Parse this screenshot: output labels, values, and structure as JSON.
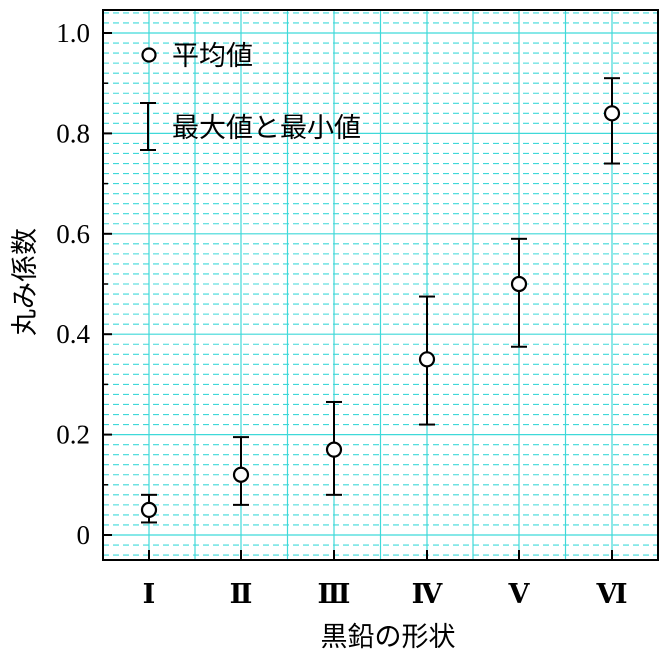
{
  "chart_data": {
    "type": "scatter",
    "xlabel": "黒鉛の形状",
    "ylabel": "丸み係数",
    "categories": [
      "Ⅰ",
      "Ⅱ",
      "Ⅲ",
      "Ⅳ",
      "Ⅴ",
      "Ⅵ"
    ],
    "y_ticks": [
      "0",
      "0.2",
      "0.4",
      "0.6",
      "0.8",
      "1.0"
    ],
    "ylim": [
      -0.05,
      1.05
    ],
    "series": [
      {
        "name": "平均値",
        "values": [
          0.05,
          0.12,
          0.17,
          0.35,
          0.5,
          0.84
        ]
      }
    ],
    "error_bars": {
      "name": "最大値と最小値",
      "min": [
        0.025,
        0.06,
        0.08,
        0.22,
        0.375,
        0.74
      ],
      "max": [
        0.08,
        0.195,
        0.265,
        0.475,
        0.59,
        0.91
      ]
    },
    "legend": {
      "placement": "top-left",
      "entries": [
        "平均値",
        "最大値と最小値"
      ]
    },
    "grid": true,
    "colors": {
      "major_grid": "#3fd9d9",
      "minor_grid": "#3fd9d9",
      "marker": "#000000",
      "axis": "#000000"
    }
  }
}
